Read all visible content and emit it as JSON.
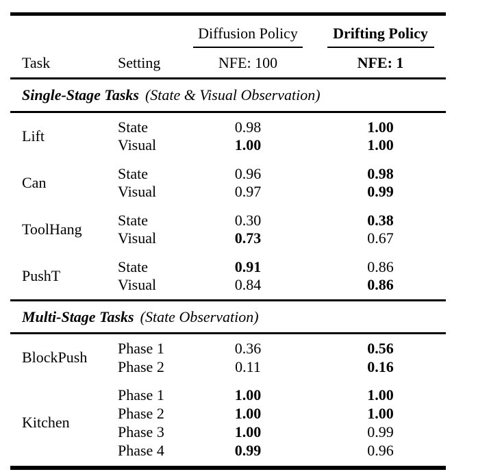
{
  "meta": {
    "background_color": "#ffffff",
    "text_color": "#000000",
    "rule_color": "#000000"
  },
  "header": {
    "task_label": "Task",
    "setting_label": "Setting",
    "groups": [
      {
        "name": "Diffusion Policy",
        "nfe": "NFE: 100",
        "bold": false
      },
      {
        "name": "Drifting Policy",
        "nfe": "NFE: 1",
        "bold": true
      }
    ]
  },
  "sections": [
    {
      "title": "Single-Stage Tasks",
      "subtitle": "(State & Visual Observation)",
      "groups": [
        {
          "task": "Lift",
          "rows": [
            {
              "setting": "State",
              "diffusion": {
                "value": "0.98",
                "bold": false
              },
              "drifting": {
                "value": "1.00",
                "bold": true
              }
            },
            {
              "setting": "Visual",
              "diffusion": {
                "value": "1.00",
                "bold": true
              },
              "drifting": {
                "value": "1.00",
                "bold": true
              }
            }
          ]
        },
        {
          "task": "Can",
          "rows": [
            {
              "setting": "State",
              "diffusion": {
                "value": "0.96",
                "bold": false
              },
              "drifting": {
                "value": "0.98",
                "bold": true
              }
            },
            {
              "setting": "Visual",
              "diffusion": {
                "value": "0.97",
                "bold": false
              },
              "drifting": {
                "value": "0.99",
                "bold": true
              }
            }
          ]
        },
        {
          "task": "ToolHang",
          "rows": [
            {
              "setting": "State",
              "diffusion": {
                "value": "0.30",
                "bold": false
              },
              "drifting": {
                "value": "0.38",
                "bold": true
              }
            },
            {
              "setting": "Visual",
              "diffusion": {
                "value": "0.73",
                "bold": true
              },
              "drifting": {
                "value": "0.67",
                "bold": false
              }
            }
          ]
        },
        {
          "task": "PushT",
          "rows": [
            {
              "setting": "State",
              "diffusion": {
                "value": "0.91",
                "bold": true
              },
              "drifting": {
                "value": "0.86",
                "bold": false
              }
            },
            {
              "setting": "Visual",
              "diffusion": {
                "value": "0.84",
                "bold": false
              },
              "drifting": {
                "value": "0.86",
                "bold": true
              }
            }
          ]
        }
      ]
    },
    {
      "title": "Multi-Stage Tasks",
      "subtitle": "(State Observation)",
      "groups": [
        {
          "task": "BlockPush",
          "rows": [
            {
              "setting": "Phase 1",
              "diffusion": {
                "value": "0.36",
                "bold": false
              },
              "drifting": {
                "value": "0.56",
                "bold": true
              }
            },
            {
              "setting": "Phase 2",
              "diffusion": {
                "value": "0.11",
                "bold": false
              },
              "drifting": {
                "value": "0.16",
                "bold": true
              }
            }
          ]
        },
        {
          "task": "Kitchen",
          "rows": [
            {
              "setting": "Phase 1",
              "diffusion": {
                "value": "1.00",
                "bold": true
              },
              "drifting": {
                "value": "1.00",
                "bold": true
              }
            },
            {
              "setting": "Phase 2",
              "diffusion": {
                "value": "1.00",
                "bold": true
              },
              "drifting": {
                "value": "1.00",
                "bold": true
              }
            },
            {
              "setting": "Phase 3",
              "diffusion": {
                "value": "1.00",
                "bold": true
              },
              "drifting": {
                "value": "0.99",
                "bold": false
              }
            },
            {
              "setting": "Phase 4",
              "diffusion": {
                "value": "0.99",
                "bold": true
              },
              "drifting": {
                "value": "0.96",
                "bold": false
              }
            }
          ]
        }
      ]
    }
  ]
}
